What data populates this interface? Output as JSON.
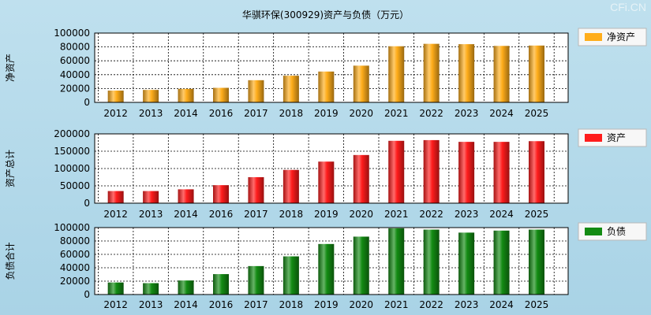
{
  "title": "华骐环保(300929)资产与负债（万元）",
  "watermark": "CFi.CN",
  "colors": {
    "orange": "#ffad1a",
    "red": "#ff1c1c",
    "green": "#138b13"
  },
  "chart_data": [
    {
      "type": "bar",
      "ylabel": "净资产",
      "legend": "净资产",
      "color_key": "orange",
      "categories": [
        "2012",
        "2013",
        "2014",
        "2016",
        "2017",
        "2018",
        "2019",
        "2020",
        "2021",
        "2022",
        "2023",
        "2024",
        "2025"
      ],
      "values": [
        17000,
        18000,
        19500,
        21000,
        32000,
        38500,
        44500,
        53000,
        81000,
        84500,
        84000,
        81500,
        82000
      ],
      "ylim": [
        0,
        100000
      ],
      "yticks": [
        "0",
        "20000",
        "40000",
        "60000",
        "80000",
        "100000"
      ]
    },
    {
      "type": "bar",
      "ylabel": "资产总计",
      "legend": "资产",
      "color_key": "red",
      "categories": [
        "2012",
        "2013",
        "2014",
        "2016",
        "2017",
        "2018",
        "2019",
        "2020",
        "2021",
        "2022",
        "2023",
        "2024",
        "2025"
      ],
      "values": [
        35000,
        35000,
        40000,
        52000,
        75000,
        96000,
        120000,
        139000,
        180000,
        182000,
        177000,
        177000,
        179000
      ],
      "ylim": [
        0,
        200000
      ],
      "yticks": [
        "0",
        "50000",
        "100000",
        "150000",
        "200000"
      ]
    },
    {
      "type": "bar",
      "ylabel": "负债合计",
      "legend": "负债",
      "color_key": "green",
      "categories": [
        "2012",
        "2013",
        "2014",
        "2016",
        "2017",
        "2018",
        "2019",
        "2020",
        "2021",
        "2022",
        "2023",
        "2024",
        "2025"
      ],
      "values": [
        18000,
        17000,
        21000,
        30500,
        42500,
        57000,
        75500,
        86500,
        99000,
        97000,
        92500,
        95500,
        97000
      ],
      "ylim": [
        0,
        100000
      ],
      "yticks": [
        "0",
        "20000",
        "40000",
        "60000",
        "80000",
        "100000"
      ]
    }
  ]
}
